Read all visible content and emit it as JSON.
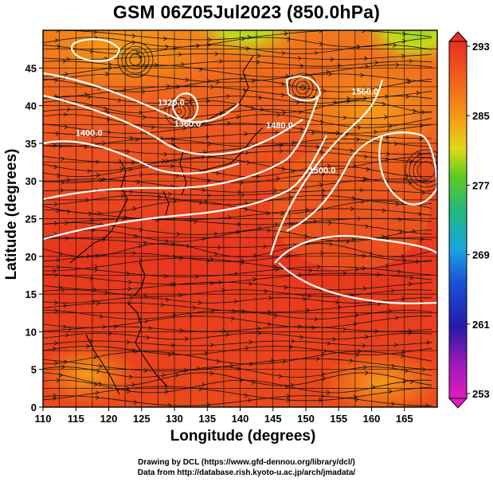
{
  "title": "GSM 06Z05Jul2023 (850.0hPa)",
  "xlabel": "Longitude (degrees)",
  "ylabel": "Latitude  (degrees)",
  "credit_line1": "Drawing by DCL (https://www.gfd-dennou.org/library/dcl/)",
  "credit_line2": "Data from http://database.rish.kyoto-u.ac.jp/arch/jmadata/",
  "chart_data": {
    "type": "map",
    "x_range": [
      110,
      170
    ],
    "y_range": [
      0,
      50
    ],
    "x_ticks": [
      "110",
      "115",
      "120",
      "125",
      "130",
      "135",
      "140",
      "145",
      "150",
      "155",
      "160",
      "165"
    ],
    "y_ticks": [
      "0",
      "5",
      "10",
      "15",
      "20",
      "25",
      "30",
      "35",
      "40",
      "45"
    ],
    "grid": true,
    "colorbar": {
      "ticks": [
        "293",
        "285",
        "277",
        "269",
        "261",
        "253"
      ],
      "min": 253,
      "max": 293
    },
    "contour_labels": [
      {
        "text": "1320.0",
        "lon": 129.5,
        "lat": 40.0
      },
      {
        "text": "1360.0",
        "lon": 132.0,
        "lat": 37.2
      },
      {
        "text": "1400.0",
        "lon": 117.0,
        "lat": 36.0
      },
      {
        "text": "1480.0",
        "lon": 146.0,
        "lat": 37.0
      },
      {
        "text": "1500.0",
        "lon": 152.5,
        "lat": 31.0
      },
      {
        "text": "1560.0",
        "lon": 159.0,
        "lat": 41.5
      }
    ],
    "colors": {
      "warm": "#e8321f",
      "mid": "#f26a1b",
      "cool": "#8cd520"
    }
  }
}
